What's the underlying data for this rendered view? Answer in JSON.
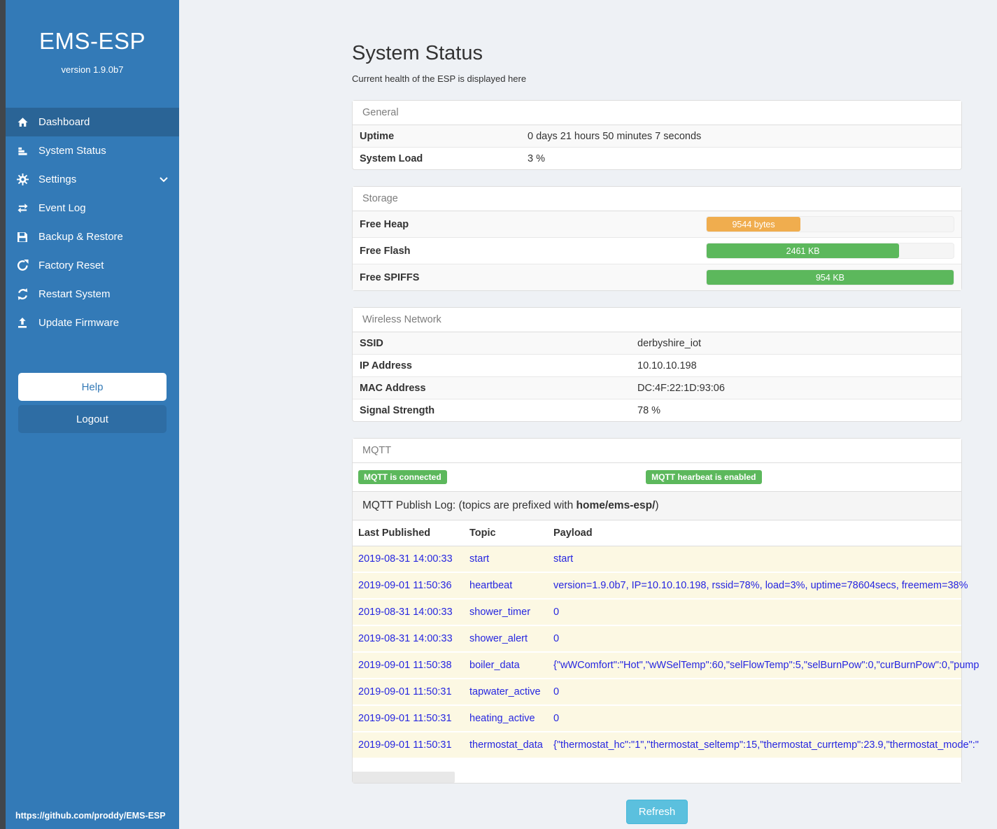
{
  "sidebar": {
    "brand": "EMS-ESP",
    "version": "version 1.9.0b7",
    "menu": [
      {
        "label": "Dashboard",
        "icon": "home-icon",
        "active": true
      },
      {
        "label": "System Status",
        "icon": "status-bars-icon"
      },
      {
        "label": "Settings",
        "icon": "gear-icon",
        "chevron": true
      },
      {
        "label": "Event Log",
        "icon": "exchange-arrows-icon"
      },
      {
        "label": "Backup & Restore",
        "icon": "floppy-disk-icon"
      },
      {
        "label": "Factory Reset",
        "icon": "rotate-arrow-icon"
      },
      {
        "label": "Restart System",
        "icon": "refresh-arrows-icon"
      },
      {
        "label": "Update Firmware",
        "icon": "upload-icon"
      }
    ],
    "help_label": "Help",
    "logout_label": "Logout",
    "footer_url": "https://github.com/proddy/EMS-ESP"
  },
  "page": {
    "title": "System Status",
    "subtitle": "Current health of the ESP is displayed here",
    "refresh_label": "Refresh"
  },
  "panels": {
    "general": {
      "title": "General",
      "rows": [
        {
          "label": "Uptime",
          "value": "0 days 21 hours 50 minutes 7 seconds"
        },
        {
          "label": "System Load",
          "value": "3 %"
        }
      ]
    },
    "storage": {
      "title": "Storage",
      "rows": [
        {
          "label": "Free Heap",
          "bar_label": "9544 bytes",
          "percent": 38,
          "color": "#f0ad4e"
        },
        {
          "label": "Free Flash",
          "bar_label": "2461 KB",
          "percent": 78,
          "color": "#5cb85c"
        },
        {
          "label": "Free SPIFFS",
          "bar_label": "954 KB",
          "percent": 100,
          "color": "#5cb85c"
        }
      ]
    },
    "wireless": {
      "title": "Wireless Network",
      "rows": [
        {
          "label": "SSID",
          "value": "derbyshire_iot"
        },
        {
          "label": "IP Address",
          "value": "10.10.10.198"
        },
        {
          "label": "MAC Address",
          "value": "DC:4F:22:1D:93:06"
        },
        {
          "label": "Signal Strength",
          "value": "78 %"
        }
      ]
    },
    "mqtt": {
      "title": "MQTT",
      "badges": [
        "MQTT is connected",
        "MQTT hearbeat is enabled"
      ],
      "log_title_prefix": "MQTT Publish Log: (topics are prefixed with ",
      "log_title_bold": "home/ems-esp/",
      "log_title_suffix": ")",
      "table": {
        "headers": [
          "Last Published",
          "Topic",
          "Payload"
        ],
        "rows": [
          {
            "published": "2019-08-31 14:00:33",
            "topic": "start",
            "payload": "start"
          },
          {
            "published": "2019-09-01 11:50:36",
            "topic": "heartbeat",
            "payload": "version=1.9.0b7, IP=10.10.10.198, rssid=78%, load=3%, uptime=78604secs, freemem=38%"
          },
          {
            "published": "2019-08-31 14:00:33",
            "topic": "shower_timer",
            "payload": "0"
          },
          {
            "published": "2019-08-31 14:00:33",
            "topic": "shower_alert",
            "payload": "0"
          },
          {
            "published": "2019-09-01 11:50:38",
            "topic": "boiler_data",
            "payload": "{\"wWComfort\":\"Hot\",\"wWSelTemp\":60,\"selFlowTemp\":5,\"selBurnPow\":0,\"curBurnPow\":0,\"pump"
          },
          {
            "published": "2019-09-01 11:50:31",
            "topic": "tapwater_active",
            "payload": "0"
          },
          {
            "published": "2019-09-01 11:50:31",
            "topic": "heating_active",
            "payload": "0"
          },
          {
            "published": "2019-09-01 11:50:31",
            "topic": "thermostat_data",
            "payload": "{\"thermostat_hc\":\"1\",\"thermostat_seltemp\":15,\"thermostat_currtemp\":23.9,\"thermostat_mode\":\""
          }
        ]
      }
    }
  },
  "colors": {
    "sidebar_blue": "#337ab7",
    "sidebar_active": "#2a6496",
    "badge_green": "#5cb85c",
    "bar_orange": "#f0ad4e",
    "bar_green": "#5cb85c",
    "refresh_blue": "#5bc0de",
    "log_text_blue": "#2626e0"
  }
}
